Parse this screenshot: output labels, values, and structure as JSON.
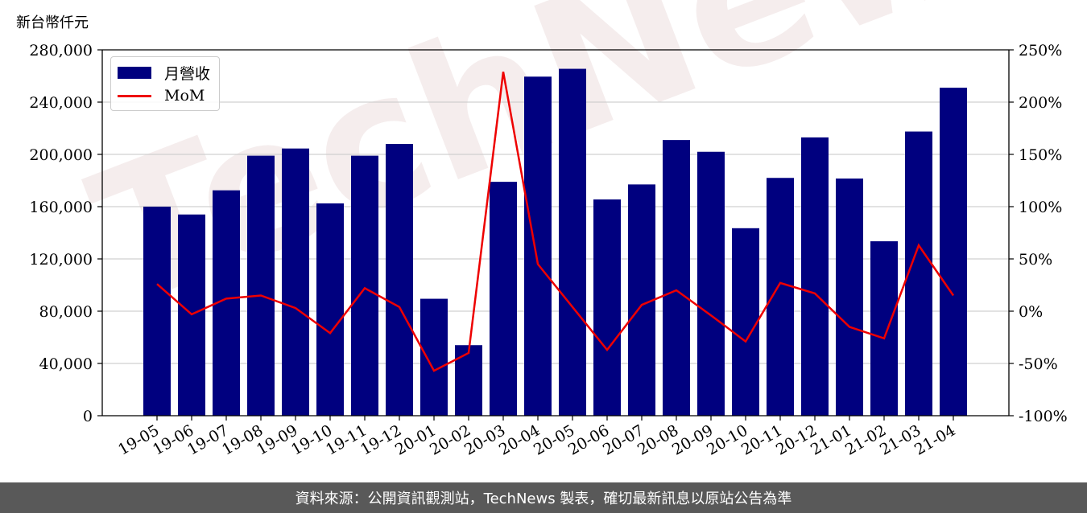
{
  "unit_label": "新台幣仟元",
  "watermark_text": "TechNews",
  "footer_text": "資料來源：公開資訊觀測站，TechNews 製表，確切最新訊息以原站公告為準",
  "colors": {
    "bar": "#00007f",
    "line": "#ee0000",
    "footer_bg": "#595959",
    "grid": "#d0d0d0"
  },
  "chart_data": {
    "type": "bar",
    "categories": [
      "19-05",
      "19-06",
      "19-07",
      "19-08",
      "19-09",
      "19-10",
      "19-11",
      "19-12",
      "20-01",
      "20-02",
      "20-03",
      "20-04",
      "20-05",
      "20-06",
      "20-07",
      "20-08",
      "20-09",
      "20-10",
      "20-11",
      "20-12",
      "21-01",
      "21-02",
      "21-03",
      "21-04"
    ],
    "series": [
      {
        "name": "月營收",
        "type": "bar",
        "axis": "left",
        "values": [
          160000,
          154000,
          172500,
          199000,
          204500,
          162500,
          199000,
          208000,
          89500,
          54000,
          179000,
          259500,
          265500,
          165500,
          177000,
          211000,
          202000,
          143500,
          182000,
          213000,
          181500,
          133500,
          217500,
          251000
        ]
      },
      {
        "name": "MoM",
        "type": "line",
        "axis": "right",
        "values": [
          26,
          -3,
          12,
          15,
          3,
          -21,
          22,
          4,
          -57,
          -40,
          229,
          45,
          4,
          -37,
          6,
          20,
          -4,
          -29,
          27,
          17,
          -15,
          -26,
          63,
          15
        ]
      }
    ],
    "ylim_left": [
      0,
      280000
    ],
    "yticks_left": [
      "0",
      "40,000",
      "80,000",
      "120,000",
      "160,000",
      "200,000",
      "240,000",
      "280,000"
    ],
    "ylim_right": [
      -100,
      250
    ],
    "yticks_right": [
      "-100%",
      "-50%",
      "0%",
      "50%",
      "100%",
      "150%",
      "200%",
      "250%"
    ],
    "grid": true,
    "legend_position": "top-left"
  }
}
